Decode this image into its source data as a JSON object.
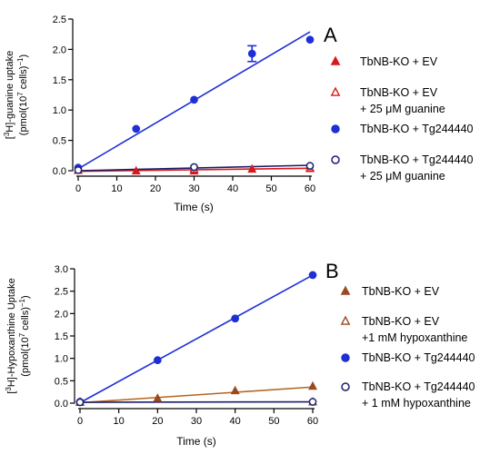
{
  "chart_data": [
    {
      "panel": "A",
      "type": "scatter",
      "xlabel": "Time (s)",
      "ylabel_html": [
        "[<tspan baseline-shift=\"super\" font-size=\"8\">3</tspan>H]-guanine uptake",
        "(pmol(10<tspan baseline-shift=\"super\" font-size=\"8\">7</tspan> cells)<tspan baseline-shift=\"super\" font-size=\"8\">−1</tspan>)"
      ],
      "ylabel": "[3H]-guanine uptake (pmol(10^7 cells)^-1)",
      "xlim": [
        0,
        60
      ],
      "ylim": [
        0,
        2.5
      ],
      "xticks": [
        0,
        10,
        20,
        30,
        40,
        50,
        60
      ],
      "yticks": [
        0.0,
        0.5,
        1.0,
        1.5,
        2.0,
        2.5
      ],
      "ytick_labels": [
        "0.0",
        "0.5",
        "1.0",
        "1.5",
        "2.0",
        "2.5"
      ],
      "series": [
        {
          "name": "TbNB-KO + EV",
          "marker": "triangle",
          "filled": true,
          "color": "#d7191c",
          "line_color": "#d7191c",
          "x": [
            0,
            15,
            30,
            45,
            60
          ],
          "values": [
            0.0,
            -0.01,
            -0.01,
            0.02,
            0.03
          ],
          "fit": [
            -0.01,
            0.04
          ]
        },
        {
          "name": "TbNB-KO + EV + 25 μM guanine",
          "marker": "triangle",
          "filled": false,
          "color": "#d7191c",
          "line_color": "#d7191c",
          "x": [
            0,
            30,
            60
          ],
          "values": [
            0.0,
            0.02,
            0.04
          ],
          "fit": null
        },
        {
          "name": "TbNB-KO + Tg244440",
          "marker": "circle",
          "filled": true,
          "color": "#1f2fd6",
          "line_color": "#1f2fd6",
          "x": [
            0,
            15,
            30,
            45,
            60
          ],
          "values": [
            0.05,
            0.69,
            1.17,
            1.93,
            2.16
          ],
          "err": [
            0,
            0,
            0,
            0.13,
            0
          ],
          "fit": [
            0.03,
            2.29
          ]
        },
        {
          "name": "TbNB-KO + Tg244440 + 25 μM guanine",
          "marker": "circle",
          "filled": false,
          "color": "#1a1f6b",
          "line_color": "#1a1f6b",
          "x": [
            0,
            30,
            60
          ],
          "values": [
            0.01,
            0.06,
            0.08
          ],
          "fit": [
            0.0,
            0.09
          ]
        }
      ],
      "legend": [
        [
          "TbNB-KO + EV"
        ],
        [
          "TbNB-KO + EV",
          "+ 25 μM guanine"
        ],
        [
          "TbNB-KO + Tg244440"
        ],
        [
          "TbNB-KO + Tg244440",
          "+ 25 μM guanine"
        ]
      ]
    },
    {
      "panel": "B",
      "type": "scatter",
      "xlabel": "Time (s)",
      "ylabel_html": [
        "[<tspan baseline-shift=\"super\" font-size=\"8\">3</tspan>H]-Hypoxanthine Uptake",
        "(pmol(10<tspan baseline-shift=\"super\" font-size=\"8\">7</tspan> cells)<tspan baseline-shift=\"super\" font-size=\"8\">−1</tspan>)"
      ],
      "ylabel": "[3H]-Hypoxanthine Uptake (pmol(10^7 cells)^-1)",
      "xlim": [
        0,
        60
      ],
      "ylim": [
        0,
        3.0
      ],
      "xticks": [
        0,
        10,
        20,
        30,
        40,
        50,
        60
      ],
      "yticks": [
        0.0,
        0.5,
        1.0,
        1.5,
        2.0,
        2.5,
        3.0
      ],
      "ytick_labels": [
        "0.0",
        "0.5",
        "1.0",
        "1.5",
        "2.0",
        "2.5",
        "3.0"
      ],
      "series": [
        {
          "name": "TbNB-KO + EV",
          "marker": "triangle",
          "filled": true,
          "color": "#9a4a1e",
          "line_color": "#b5651d",
          "x": [
            0,
            20,
            40,
            60
          ],
          "values": [
            0.02,
            0.1,
            0.27,
            0.37
          ],
          "fit": [
            0.01,
            0.36
          ]
        },
        {
          "name": "TbNB-KO + EV +1 mM hypoxanthine",
          "marker": "triangle",
          "filled": false,
          "color": "#9a4a1e",
          "line_color": "#9a4a1e",
          "x": [
            0,
            60
          ],
          "values": [
            0.01,
            0.02
          ],
          "fit": null
        },
        {
          "name": "TbNB-KO + Tg244440",
          "marker": "circle",
          "filled": true,
          "color": "#1f2fd6",
          "line_color": "#1f2fd6",
          "x": [
            0,
            20,
            40,
            60
          ],
          "values": [
            0.03,
            0.96,
            1.89,
            2.86
          ],
          "fit": [
            0.01,
            2.86
          ]
        },
        {
          "name": "TbNB-KO + Tg244440 + 1 mM hypoxanthine",
          "marker": "circle",
          "filled": false,
          "color": "#1a1f6b",
          "line_color": "#1a1f6b",
          "x": [
            0,
            60
          ],
          "values": [
            0.02,
            0.03
          ],
          "fit": [
            0.02,
            0.03
          ]
        }
      ],
      "legend": [
        [
          "TbNB-KO + EV"
        ],
        [
          "TbNB-KO + EV",
          "+1 mM hypoxanthine"
        ],
        [
          "TbNB-KO + Tg244440"
        ],
        [
          "TbNB-KO + Tg244440",
          "+ 1 mM hypoxanthine"
        ]
      ]
    }
  ]
}
